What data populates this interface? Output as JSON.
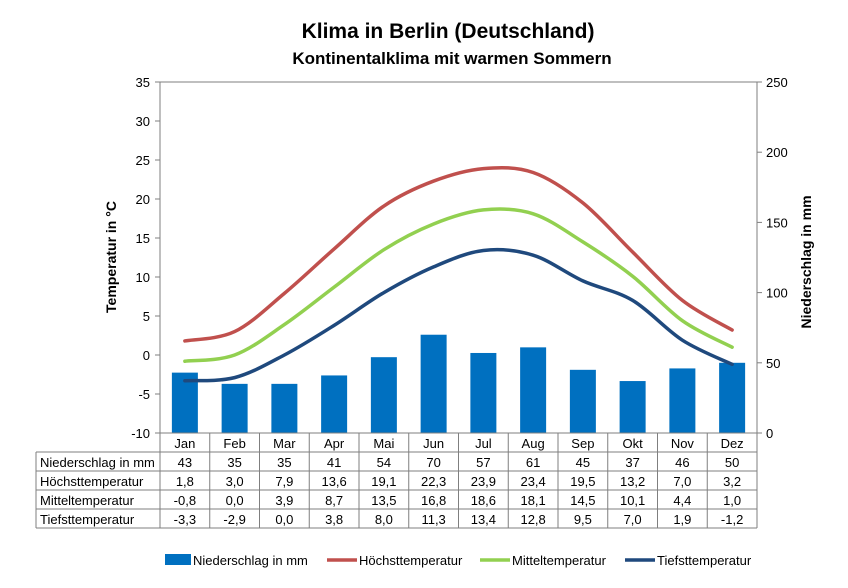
{
  "chart_data": {
    "type": "bar+line",
    "title": "Klima in Berlin (Deutschland)",
    "subtitle": "Kontinentalklima mit warmen Sommern",
    "ylabel_left": "Temperatur in °C",
    "ylabel_right": "Niederschlag in mm",
    "ylim_left": [
      -10,
      35
    ],
    "ylim_right": [
      0,
      250
    ],
    "yticks_left": [
      "35",
      "30",
      "25",
      "20",
      "15",
      "10",
      "5",
      "0",
      "-5",
      "-10"
    ],
    "yticks_right": [
      "250",
      "200",
      "150",
      "100",
      "50",
      "0"
    ],
    "categories": [
      "Jan",
      "Feb",
      "Mar",
      "Apr",
      "Mai",
      "Jun",
      "Jul",
      "Aug",
      "Sep",
      "Okt",
      "Nov",
      "Dez"
    ],
    "bar_series": {
      "name": "Niederschlag in mm",
      "color": "#0070c0",
      "values": [
        43,
        35,
        35,
        41,
        54,
        70,
        57,
        61,
        45,
        37,
        46,
        50
      ],
      "labels": [
        "43",
        "35",
        "35",
        "41",
        "54",
        "70",
        "57",
        "61",
        "45",
        "37",
        "46",
        "50"
      ]
    },
    "line_series": [
      {
        "name": "Höchsttemperatur",
        "color": "#c0504d",
        "values": [
          1.8,
          3.0,
          7.9,
          13.6,
          19.1,
          22.3,
          23.9,
          23.4,
          19.5,
          13.2,
          7.0,
          3.2
        ],
        "labels": [
          "1,8",
          "3,0",
          "7,9",
          "13,6",
          "19,1",
          "22,3",
          "23,9",
          "23,4",
          "19,5",
          "13,2",
          "7,0",
          "3,2"
        ]
      },
      {
        "name": "Mitteltemperatur",
        "color": "#92d050",
        "values": [
          -0.8,
          0.0,
          3.9,
          8.7,
          13.5,
          16.8,
          18.6,
          18.1,
          14.5,
          10.1,
          4.4,
          1.0
        ],
        "labels": [
          "-0,8",
          "0,0",
          "3,9",
          "8,7",
          "13,5",
          "16,8",
          "18,6",
          "18,1",
          "14,5",
          "10,1",
          "4,4",
          "1,0"
        ]
      },
      {
        "name": "Tiefsttemperatur",
        "color": "#1f497d",
        "values": [
          -3.3,
          -2.9,
          0.0,
          3.8,
          8.0,
          11.3,
          13.4,
          12.8,
          9.5,
          7.0,
          1.9,
          -1.2
        ],
        "labels": [
          "-3,3",
          "-2,9",
          "0,0",
          "3,8",
          "8,0",
          "11,3",
          "13,4",
          "12,8",
          "9,5",
          "7,0",
          "1,9",
          "-1,2"
        ]
      }
    ],
    "legend": [
      "Niederschlag in mm",
      "Höchsttemperatur",
      "Mitteltemperatur",
      "Tiefsttemperatur"
    ],
    "legend_position": "bottom",
    "grid": false
  }
}
